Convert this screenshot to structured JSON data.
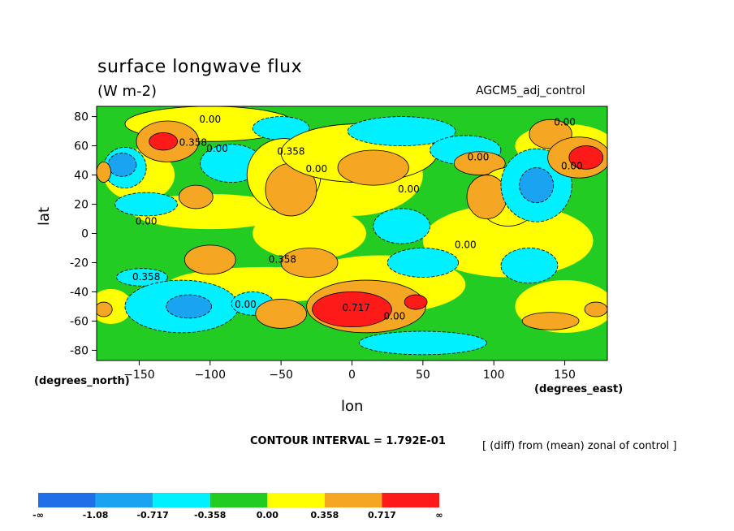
{
  "chart_data": {
    "type": "contour",
    "title": "surface longwave flux",
    "units": "(W m-2)",
    "dataset": "AGCM5_adj_control",
    "xlabel": "lon",
    "ylabel": "lat",
    "x_units": "(degrees_east)",
    "y_units": "(degrees_north)",
    "xlim": [
      -180,
      180
    ],
    "ylim": [
      -87,
      87
    ],
    "x_ticks": [
      -150,
      -100,
      -50,
      0,
      50,
      100,
      150
    ],
    "y_ticks": [
      80,
      60,
      40,
      20,
      0,
      -20,
      -40,
      -60,
      -80
    ],
    "contour_interval": "CONTOUR INTERVAL = 1.792E-01",
    "note": "[ (diff) from (mean) zonal of control ]",
    "colorbar": {
      "labels": [
        "-∞",
        "-1.08",
        "-0.717",
        "-0.358",
        "0.00",
        "0.358",
        "0.717",
        "∞"
      ],
      "colors": [
        "#1f6fe8",
        "#1aa3f0",
        "#00f0ff",
        "#22cc22",
        "#ffff00",
        "#f5a623",
        "#ff1a1a"
      ]
    },
    "contour_labels": [
      {
        "text": "0.00",
        "lon": -100,
        "lat": 76
      },
      {
        "text": "0.358",
        "lon": -112,
        "lat": 60
      },
      {
        "text": "0.00",
        "lon": -95,
        "lat": 56
      },
      {
        "text": "0.358",
        "lon": -43,
        "lat": 54
      },
      {
        "text": "0.00",
        "lon": -25,
        "lat": 42
      },
      {
        "text": "0.00",
        "lon": 40,
        "lat": 28
      },
      {
        "text": "0.00",
        "lon": 89,
        "lat": 50
      },
      {
        "text": "0.00",
        "lon": 150,
        "lat": 74
      },
      {
        "text": "0.00",
        "lon": 155,
        "lat": 44
      },
      {
        "text": "0.00",
        "lon": -145,
        "lat": 6
      },
      {
        "text": "0.00",
        "lon": 80,
        "lat": -10
      },
      {
        "text": "0.358",
        "lon": -49,
        "lat": -20
      },
      {
        "text": "0.358",
        "lon": -145,
        "lat": -32
      },
      {
        "text": "0.00",
        "lon": -75,
        "lat": -51
      },
      {
        "text": "0.717",
        "lon": 3,
        "lat": -53
      },
      {
        "text": "0.00",
        "lon": 30,
        "lat": -59
      }
    ],
    "blobs": [
      {
        "lon": -100,
        "lat": 75,
        "rx": 60,
        "ry": 12,
        "level": 4
      },
      {
        "lon": -130,
        "lat": 63,
        "rx": 22,
        "ry": 14,
        "level": 5
      },
      {
        "lon": -133,
        "lat": 63,
        "rx": 10,
        "ry": 6,
        "level": 6
      },
      {
        "lon": -160,
        "lat": 45,
        "rx": 15,
        "ry": 14,
        "level": 2
      },
      {
        "lon": -162,
        "lat": 47,
        "rx": 10,
        "ry": 8,
        "level": 1
      },
      {
        "lon": -175,
        "lat": 42,
        "rx": 5,
        "ry": 7,
        "level": 5
      },
      {
        "lon": -85,
        "lat": 48,
        "rx": 22,
        "ry": 13,
        "level": 2
      },
      {
        "lon": -50,
        "lat": 72,
        "rx": 20,
        "ry": 8,
        "level": 2
      },
      {
        "lon": -48,
        "lat": 40,
        "rx": 26,
        "ry": 25,
        "level": 4
      },
      {
        "lon": -43,
        "lat": 30,
        "rx": 18,
        "ry": 18,
        "level": 5
      },
      {
        "lon": 5,
        "lat": 55,
        "rx": 55,
        "ry": 20,
        "level": 4
      },
      {
        "lon": 15,
        "lat": 45,
        "rx": 25,
        "ry": 12,
        "level": 5
      },
      {
        "lon": 35,
        "lat": 70,
        "rx": 38,
        "ry": 10,
        "level": 2
      },
      {
        "lon": 80,
        "lat": 57,
        "rx": 25,
        "ry": 10,
        "level": 2
      },
      {
        "lon": 90,
        "lat": 48,
        "rx": 18,
        "ry": 8,
        "level": 5
      },
      {
        "lon": 110,
        "lat": 25,
        "rx": 22,
        "ry": 20,
        "level": 4
      },
      {
        "lon": 95,
        "lat": 25,
        "rx": 14,
        "ry": 15,
        "level": 5
      },
      {
        "lon": 130,
        "lat": 33,
        "rx": 25,
        "ry": 25,
        "level": 2
      },
      {
        "lon": 130,
        "lat": 33,
        "rx": 12,
        "ry": 12,
        "level": 1
      },
      {
        "lon": 140,
        "lat": 68,
        "rx": 15,
        "ry": 10,
        "level": 5
      },
      {
        "lon": 160,
        "lat": 52,
        "rx": 22,
        "ry": 14,
        "level": 5
      },
      {
        "lon": 165,
        "lat": 52,
        "rx": 12,
        "ry": 8,
        "level": 6
      },
      {
        "lon": -145,
        "lat": 20,
        "rx": 22,
        "ry": 8,
        "level": 2
      },
      {
        "lon": -110,
        "lat": 25,
        "rx": 12,
        "ry": 8,
        "level": 5
      },
      {
        "lon": 35,
        "lat": 5,
        "rx": 20,
        "ry": 12,
        "level": 2
      },
      {
        "lon": -100,
        "lat": -18,
        "rx": 18,
        "ry": 10,
        "level": 5
      },
      {
        "lon": -30,
        "lat": -20,
        "rx": 20,
        "ry": 10,
        "level": 5
      },
      {
        "lon": 50,
        "lat": -20,
        "rx": 25,
        "ry": 10,
        "level": 2
      },
      {
        "lon": 125,
        "lat": -22,
        "rx": 20,
        "ry": 12,
        "level": 2
      },
      {
        "lon": -148,
        "lat": -30,
        "rx": 18,
        "ry": 6,
        "level": 2
      },
      {
        "lon": -120,
        "lat": -50,
        "rx": 40,
        "ry": 18,
        "level": 2
      },
      {
        "lon": -115,
        "lat": -50,
        "rx": 16,
        "ry": 8,
        "level": 1
      },
      {
        "lon": -70,
        "lat": -48,
        "rx": 15,
        "ry": 8,
        "level": 2
      },
      {
        "lon": -50,
        "lat": -55,
        "rx": 18,
        "ry": 10,
        "level": 5
      },
      {
        "lon": 10,
        "lat": -50,
        "rx": 42,
        "ry": 18,
        "level": 5
      },
      {
        "lon": 0,
        "lat": -52,
        "rx": 28,
        "ry": 12,
        "level": 6
      },
      {
        "lon": 45,
        "lat": -47,
        "rx": 8,
        "ry": 5,
        "level": 6
      },
      {
        "lon": 50,
        "lat": -75,
        "rx": 45,
        "ry": 8,
        "level": 2
      },
      {
        "lon": 140,
        "lat": -60,
        "rx": 20,
        "ry": 6,
        "level": 5
      },
      {
        "lon": 172,
        "lat": -52,
        "rx": 8,
        "ry": 5,
        "level": 5
      },
      {
        "lon": -175,
        "lat": -52,
        "rx": 6,
        "ry": 5,
        "level": 5
      }
    ]
  }
}
